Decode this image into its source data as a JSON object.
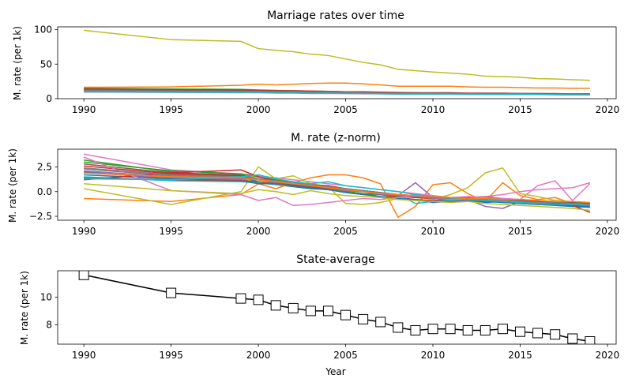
{
  "chart_data": [
    {
      "type": "line",
      "title": "Marriage rates over time",
      "xlabel": "",
      "ylabel": "M. rate (per 1k)",
      "xlim": [
        1988.5,
        2020.5
      ],
      "ylim": [
        0,
        104
      ],
      "xticks": [
        1990,
        1995,
        2000,
        2005,
        2010,
        2015,
        2020
      ],
      "yticks": [
        0,
        50,
        100
      ],
      "x": [
        1990,
        1995,
        1999,
        2000,
        2001,
        2002,
        2003,
        2004,
        2005,
        2006,
        2007,
        2008,
        2009,
        2010,
        2011,
        2012,
        2013,
        2014,
        2015,
        2016,
        2017,
        2018,
        2019
      ],
      "series": [
        {
          "color": "#bcbd22",
          "values": [
            99.0,
            85.5,
            83.0,
            72.5,
            70.0,
            68.0,
            64.5,
            62.5,
            57.5,
            52.5,
            49.0,
            42.5,
            40.5,
            38.5,
            37.0,
            35.5,
            32.5,
            32.0,
            31.0,
            29.0,
            28.5,
            27.5,
            26.5
          ]
        },
        {
          "color": "#ff7f0e",
          "values": [
            16.5,
            17.0,
            19.5,
            21.0,
            20.0,
            21.0,
            22.0,
            22.5,
            22.5,
            21.5,
            20.0,
            18.0,
            18.0,
            18.0,
            18.0,
            17.0,
            16.5,
            16.5,
            16.0,
            15.5,
            15.5,
            15.0,
            15.0
          ]
        },
        {
          "color": "#1f77b4",
          "values": [
            11.5,
            10.5,
            10.0,
            10.0,
            9.5,
            9.5,
            9.0,
            9.0,
            8.5,
            8.5,
            8.0,
            7.5,
            7.5,
            7.5,
            7.5,
            7.5,
            7.5,
            7.5,
            7.5,
            7.5,
            7.0,
            7.0,
            6.5
          ]
        },
        {
          "color": "#2ca02c",
          "values": [
            15.0,
            14.0,
            13.5,
            12.5,
            12.0,
            11.5,
            11.0,
            10.5,
            10.0,
            9.5,
            9.0,
            8.5,
            8.5,
            8.0,
            8.0,
            7.5,
            7.5,
            7.5,
            7.0,
            7.0,
            7.0,
            6.5,
            6.5
          ]
        },
        {
          "color": "#d62728",
          "values": [
            14.0,
            13.0,
            12.5,
            12.0,
            11.5,
            11.5,
            11.0,
            10.5,
            10.0,
            10.0,
            9.5,
            9.0,
            8.5,
            8.5,
            8.5,
            8.0,
            8.0,
            8.0,
            7.5,
            7.5,
            7.5,
            7.0,
            7.0
          ]
        },
        {
          "color": "#9467bd",
          "values": [
            10.5,
            10.0,
            9.5,
            9.5,
            9.0,
            9.0,
            8.5,
            8.5,
            8.0,
            8.0,
            7.5,
            7.0,
            7.0,
            7.0,
            7.0,
            6.5,
            6.5,
            6.5,
            6.5,
            6.0,
            6.0,
            6.0,
            5.5
          ]
        },
        {
          "color": "#8c564b",
          "values": [
            13.0,
            12.0,
            11.5,
            11.0,
            10.5,
            10.5,
            10.0,
            10.0,
            9.5,
            9.0,
            8.5,
            8.0,
            8.0,
            8.0,
            8.0,
            7.5,
            7.5,
            7.5,
            7.5,
            7.0,
            7.0,
            7.0,
            6.5
          ]
        },
        {
          "color": "#e377c2",
          "values": [
            9.5,
            9.0,
            8.5,
            8.5,
            8.0,
            8.0,
            7.5,
            7.5,
            7.5,
            7.0,
            7.0,
            6.5,
            6.5,
            6.5,
            6.5,
            6.0,
            6.0,
            6.0,
            6.0,
            6.0,
            5.5,
            5.5,
            5.5
          ]
        },
        {
          "color": "#7f7f7f",
          "values": [
            12.0,
            11.0,
            10.5,
            10.5,
            10.0,
            10.0,
            9.5,
            9.5,
            9.0,
            8.5,
            8.0,
            7.5,
            7.5,
            7.5,
            7.0,
            7.0,
            7.0,
            7.0,
            7.0,
            6.5,
            6.5,
            6.5,
            6.0
          ]
        },
        {
          "color": "#17becf",
          "values": [
            10.0,
            9.5,
            9.0,
            9.0,
            8.5,
            8.5,
            8.0,
            8.0,
            7.5,
            7.5,
            7.0,
            6.5,
            6.5,
            6.5,
            6.5,
            6.5,
            6.0,
            6.0,
            6.0,
            6.0,
            6.0,
            5.5,
            5.5
          ]
        }
      ]
    },
    {
      "type": "line",
      "title": "M. rate (z-norm)",
      "xlabel": "",
      "ylabel": "M. rate (per 1k)",
      "xlim": [
        1988.5,
        2020.5
      ],
      "ylim": [
        -2.9,
        4.3
      ],
      "xticks": [
        1990,
        1995,
        2000,
        2005,
        2010,
        2015,
        2020
      ],
      "yticks": [
        -2.5,
        0.0,
        2.5
      ],
      "ytick_labels": [
        "−2.5",
        "0.0",
        "2.5"
      ],
      "x": [
        1990,
        1995,
        1999,
        2000,
        2001,
        2002,
        2003,
        2004,
        2005,
        2006,
        2007,
        2008,
        2009,
        2010,
        2011,
        2012,
        2013,
        2014,
        2015,
        2016,
        2017,
        2018,
        2019
      ],
      "series": [
        {
          "color": "#1f77b4",
          "values": [
            2.0,
            1.3,
            1.1,
            0.9,
            0.7,
            0.5,
            0.3,
            0.2,
            0.0,
            -0.2,
            -0.5,
            -0.7,
            -0.9,
            -1.0,
            -1.0,
            -0.9,
            -1.1,
            -1.0,
            -1.2,
            -1.3,
            -1.4,
            -1.5,
            -1.6
          ]
        },
        {
          "color": "#ff7f0e",
          "values": [
            -0.7,
            -1.0,
            -0.3,
            0.8,
            0.3,
            0.9,
            1.4,
            1.7,
            1.7,
            1.4,
            0.8,
            -2.6,
            -1.5,
            0.7,
            0.9,
            -0.2,
            -1.0,
            0.9,
            -0.4,
            -0.8,
            -0.6,
            -1.2,
            -1.3
          ]
        },
        {
          "color": "#2ca02c",
          "values": [
            3.2,
            2.0,
            1.5,
            1.0,
            0.8,
            0.6,
            0.4,
            0.2,
            0.0,
            -0.2,
            -0.3,
            -0.5,
            -0.6,
            -0.7,
            -0.8,
            -0.9,
            -0.9,
            -1.0,
            -1.0,
            -1.1,
            -1.1,
            -1.2,
            -1.3
          ]
        },
        {
          "color": "#d62728",
          "values": [
            2.6,
            1.8,
            1.6,
            1.2,
            1.0,
            0.9,
            0.7,
            0.4,
            0.1,
            0.0,
            -0.3,
            -0.6,
            -0.8,
            -0.9,
            -0.8,
            -0.9,
            -0.9,
            -1.0,
            -1.1,
            -1.2,
            -1.3,
            -1.4,
            -2.1
          ]
        },
        {
          "color": "#9467bd",
          "values": [
            1.9,
            1.4,
            1.2,
            1.0,
            0.8,
            0.6,
            0.5,
            0.3,
            0.1,
            0.0,
            -0.2,
            -0.4,
            0.9,
            -0.6,
            -0.7,
            -0.8,
            -1.5,
            -1.7,
            -1.0,
            -1.1,
            -1.2,
            -1.3,
            -1.5
          ]
        },
        {
          "color": "#8c564b",
          "values": [
            2.8,
            1.9,
            1.7,
            1.3,
            1.1,
            0.9,
            0.8,
            0.5,
            0.3,
            0.1,
            -0.1,
            -0.4,
            -0.5,
            -0.6,
            -0.7,
            -0.6,
            -0.5,
            -0.7,
            -0.8,
            -0.9,
            -1.0,
            -1.1,
            -1.3
          ]
        },
        {
          "color": "#e377c2",
          "values": [
            3.8,
            2.2,
            1.8,
            1.6,
            1.4,
            1.2,
            1.0,
            0.8,
            0.6,
            0.4,
            0.2,
            0.0,
            -0.2,
            -0.4,
            -0.6,
            -0.5,
            -0.6,
            -0.7,
            -0.8,
            0.6,
            1.1,
            -0.9,
            0.8
          ]
        },
        {
          "color": "#7f7f7f",
          "values": [
            2.3,
            1.6,
            1.4,
            1.2,
            1.0,
            0.8,
            0.6,
            0.4,
            0.2,
            0.0,
            -0.2,
            -0.4,
            -0.5,
            -0.6,
            -0.7,
            -0.8,
            -0.8,
            -0.9,
            -1.0,
            -1.1,
            -1.1,
            -1.2,
            -1.3
          ]
        },
        {
          "color": "#bcbd22",
          "values": [
            0.3,
            -1.3,
            0.0,
            2.5,
            1.3,
            1.6,
            0.8,
            0.5,
            -1.2,
            -1.3,
            -1.1,
            -0.7,
            -0.5,
            -0.8,
            -0.3,
            0.4,
            1.9,
            2.4,
            -0.2,
            -0.5,
            -0.9,
            -1.0,
            -1.4
          ]
        },
        {
          "color": "#17becf",
          "values": [
            1.5,
            1.1,
            1.0,
            0.9,
            0.7,
            0.6,
            0.5,
            0.4,
            0.2,
            0.1,
            -0.1,
            -0.3,
            -1.2,
            -1.0,
            -0.9,
            -0.9,
            -0.8,
            -0.9,
            -1.0,
            -1.0,
            -1.1,
            -1.1,
            -1.2
          ]
        },
        {
          "color": "#1f77b4",
          "values": [
            1.7,
            1.3,
            1.1,
            0.8,
            0.8,
            0.6,
            0.4,
            0.2,
            -0.1,
            -0.3,
            -0.5,
            -0.7,
            -0.8,
            -1.1,
            -1.0,
            -0.9,
            -1.0,
            -1.1,
            -1.2,
            -1.3,
            -1.3,
            -1.4,
            -1.5
          ]
        },
        {
          "color": "#2ca02c",
          "values": [
            3.0,
            2.1,
            1.8,
            1.5,
            1.2,
            1.0,
            0.7,
            0.5,
            0.3,
            0.1,
            -0.1,
            -0.3,
            -0.5,
            -0.5,
            -0.6,
            -0.8,
            -0.7,
            -0.8,
            -0.9,
            -1.0,
            -1.0,
            -1.1,
            -1.2
          ]
        },
        {
          "color": "#d62728",
          "values": [
            1.2,
            1.9,
            2.2,
            1.5,
            1.1,
            0.9,
            0.7,
            0.6,
            0.3,
            0.1,
            -0.2,
            -0.4,
            -0.6,
            -0.7,
            -0.6,
            -0.8,
            -0.9,
            -1.0,
            -1.0,
            -1.1,
            -1.2,
            -1.3,
            -1.4
          ]
        },
        {
          "color": "#9467bd",
          "values": [
            2.1,
            1.5,
            1.3,
            1.2,
            0.9,
            0.7,
            0.6,
            0.3,
            0.2,
            0.0,
            -0.3,
            -0.4,
            -0.5,
            -0.7,
            -0.8,
            -0.8,
            -0.9,
            -0.9,
            -1.0,
            -1.1,
            -1.1,
            -1.2,
            -1.3
          ]
        },
        {
          "color": "#8c564b",
          "values": [
            1.4,
            1.2,
            1.1,
            1.0,
            0.8,
            0.7,
            0.5,
            0.3,
            0.2,
            0.1,
            -0.1,
            -0.3,
            -0.4,
            -0.5,
            -0.6,
            -0.7,
            -0.8,
            -0.8,
            -0.9,
            -1.0,
            -1.0,
            -1.1,
            -1.2
          ]
        },
        {
          "color": "#e377c2",
          "values": [
            3.5,
            0.1,
            -0.3,
            -0.9,
            -0.6,
            -1.4,
            -1.3,
            -1.1,
            -0.9,
            -0.7,
            -0.8,
            -0.6,
            -0.4,
            -0.6,
            -0.8,
            -0.8,
            -0.5,
            -0.3,
            0.0,
            0.2,
            0.3,
            0.4,
            0.9
          ]
        },
        {
          "color": "#7f7f7f",
          "values": [
            2.4,
            1.7,
            1.5,
            1.3,
            1.1,
            0.9,
            0.7,
            0.5,
            0.3,
            0.1,
            -0.1,
            -0.3,
            -0.4,
            -0.6,
            -0.7,
            -0.7,
            -0.8,
            -0.9,
            -1.0,
            -1.1,
            -1.1,
            -1.2,
            -1.3
          ]
        },
        {
          "color": "#bcbd22",
          "values": [
            0.8,
            0.1,
            -0.2,
            0.2,
            0.0,
            -0.3,
            0.1,
            -0.2,
            -0.4,
            -0.5,
            -0.6,
            -0.8,
            -0.9,
            -1.0,
            -1.1,
            -1.0,
            -1.2,
            -1.3,
            -1.4,
            -1.5,
            -1.6,
            -1.7,
            -1.9
          ]
        },
        {
          "color": "#17becf",
          "values": [
            1.3,
            1.2,
            1.5,
            1.7,
            1.3,
            1.0,
            0.8,
            1.0,
            0.6,
            0.4,
            0.2,
            0.0,
            -0.3,
            -0.5,
            -0.6,
            -0.8,
            -0.9,
            -1.0,
            -1.1,
            -1.2,
            -1.3,
            -1.3,
            -1.4
          ]
        },
        {
          "color": "#ff7f0e",
          "values": [
            1.9,
            1.5,
            1.4,
            1.2,
            1.0,
            0.8,
            0.6,
            0.4,
            0.2,
            0.0,
            -0.2,
            -0.3,
            -0.4,
            -0.5,
            -0.6,
            -0.7,
            -0.7,
            -0.8,
            -0.8,
            -0.9,
            -1.0,
            -1.0,
            -1.1
          ]
        }
      ]
    },
    {
      "type": "line",
      "title": "State-average",
      "xlabel": "Year",
      "ylabel": "M. rate (per 1k)",
      "xlim": [
        1988.5,
        2020.5
      ],
      "ylim": [
        6.6,
        11.9
      ],
      "xticks": [
        1990,
        1995,
        2000,
        2005,
        2010,
        2015,
        2020
      ],
      "yticks": [
        8,
        10
      ],
      "x": [
        1990,
        1995,
        1999,
        2000,
        2001,
        2002,
        2003,
        2004,
        2005,
        2006,
        2007,
        2008,
        2009,
        2010,
        2011,
        2012,
        2013,
        2014,
        2015,
        2016,
        2017,
        2018,
        2019
      ],
      "series": [
        {
          "color": "#000000",
          "marker": "square",
          "values": [
            11.6,
            10.3,
            9.9,
            9.8,
            9.4,
            9.2,
            9.0,
            9.0,
            8.7,
            8.4,
            8.2,
            7.8,
            7.6,
            7.7,
            7.7,
            7.6,
            7.6,
            7.7,
            7.5,
            7.4,
            7.3,
            7.0,
            6.8
          ]
        }
      ]
    }
  ]
}
